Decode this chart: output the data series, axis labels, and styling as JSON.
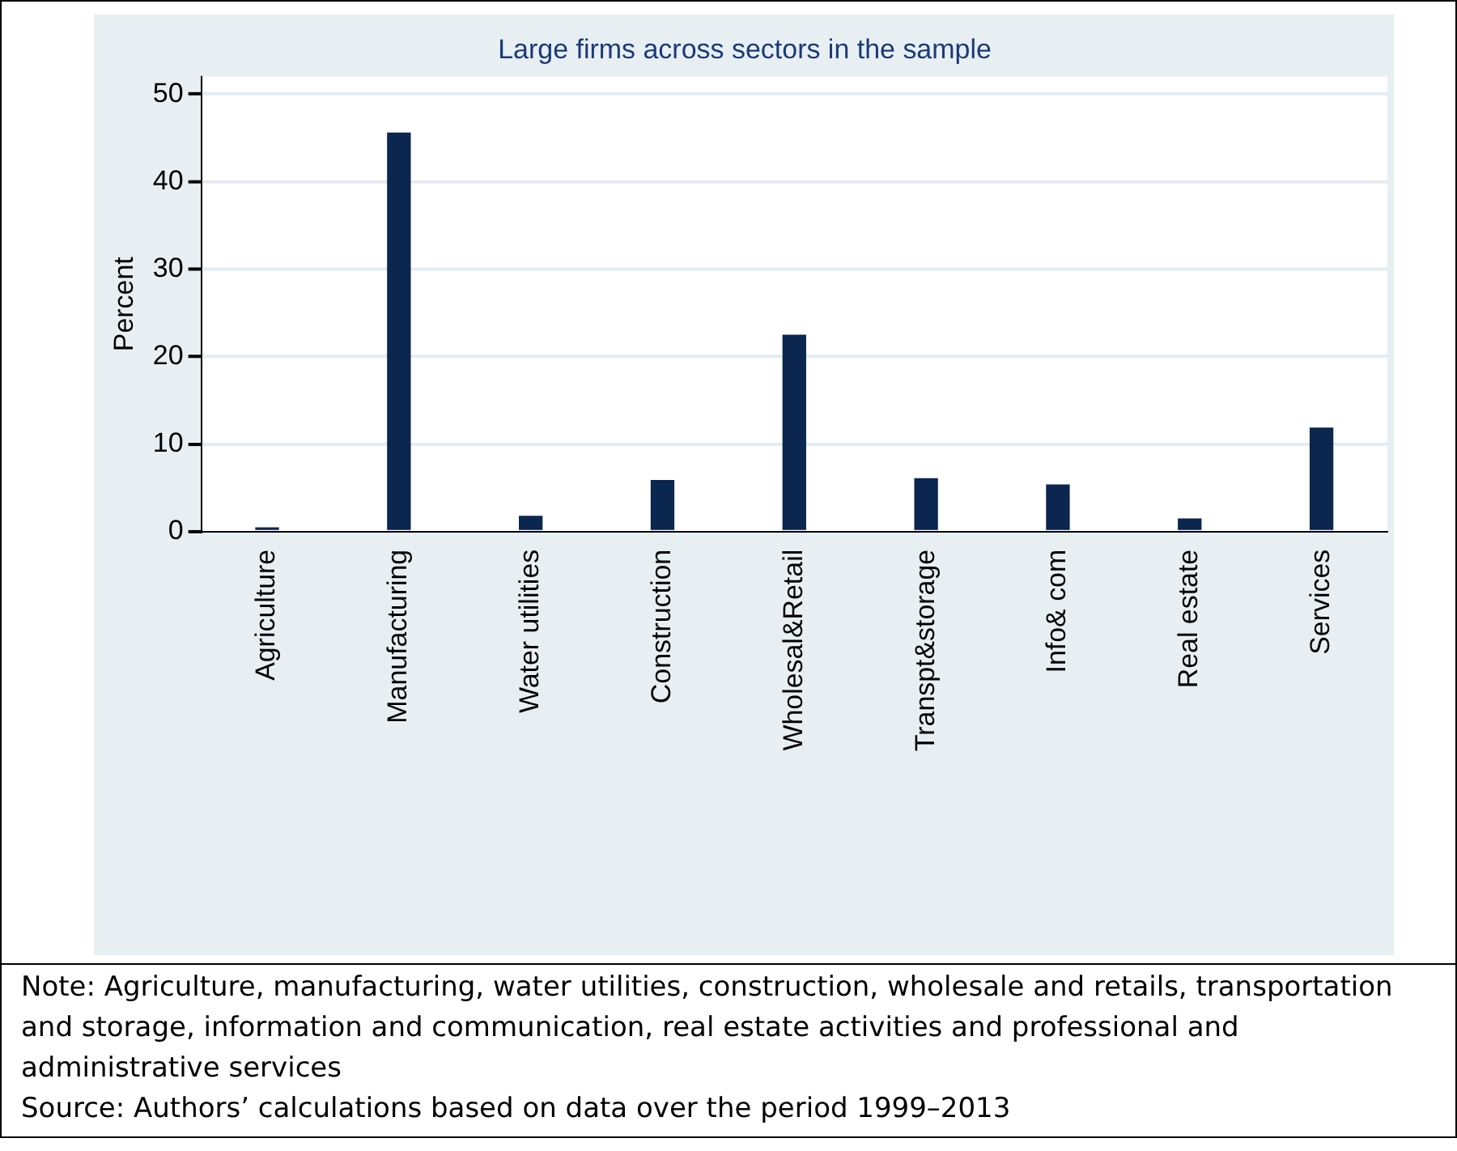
{
  "chart_data": {
    "type": "bar",
    "title": "Large firms across sectors in the sample",
    "ylabel": "Percent",
    "categories": [
      "Agriculture",
      "Manufacturing",
      "Water utilities",
      "Construction",
      "Wholesal&Retail",
      "Transpt&storage",
      "Info& com",
      "Real estate",
      "Services"
    ],
    "values": [
      0.5,
      45.6,
      1.8,
      5.9,
      22.5,
      6.1,
      5.4,
      1.5,
      11.9
    ],
    "color": "#0b264f",
    "ylim": [
      0,
      52
    ],
    "yticks": [
      0,
      10,
      20,
      30,
      40,
      50
    ],
    "grid": "y",
    "legend": false,
    "annotations": [
      "Note: Agriculture, manufacturing, water utilities, construction, wholesale and retails, transportation and storage, information and communication, real estate activities and professional and administrative services",
      "Source: Authors’ calculations based on data over the period 1999–2013"
    ]
  }
}
